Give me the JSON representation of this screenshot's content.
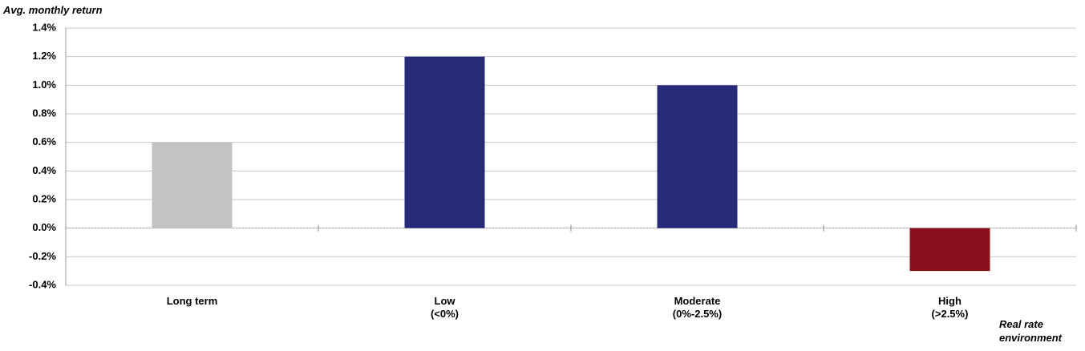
{
  "chart_data": {
    "type": "bar",
    "y_axis_label": "Avg. monthly return",
    "x_axis_label": "Real rate\nenvironment",
    "categories": [
      "Long term",
      "Low\n(<0%)",
      "Moderate\n(0%-2.5%)",
      "High\n(>2.5%)"
    ],
    "values": [
      0.6,
      1.2,
      1.0,
      -0.3
    ],
    "colors": [
      "#c3c3c3",
      "#262a78",
      "#262a78",
      "#8a0f1c"
    ],
    "ylim": [
      -0.4,
      1.4
    ],
    "yticks": [
      {
        "value": -0.4,
        "label": "-0.4%"
      },
      {
        "value": -0.2,
        "label": "-0.2%"
      },
      {
        "value": 0,
        "label": "0.0%"
      },
      {
        "value": 0.2,
        "label": "0.2%"
      },
      {
        "value": 0.4,
        "label": "0.4%"
      },
      {
        "value": 0.6,
        "label": "0.6%"
      },
      {
        "value": 0.8,
        "label": "0.8%"
      },
      {
        "value": 1.0,
        "label": "1.0%"
      },
      {
        "value": 1.2,
        "label": "1.2%"
      },
      {
        "value": 1.4,
        "label": "1.4%"
      }
    ],
    "grid": true
  }
}
